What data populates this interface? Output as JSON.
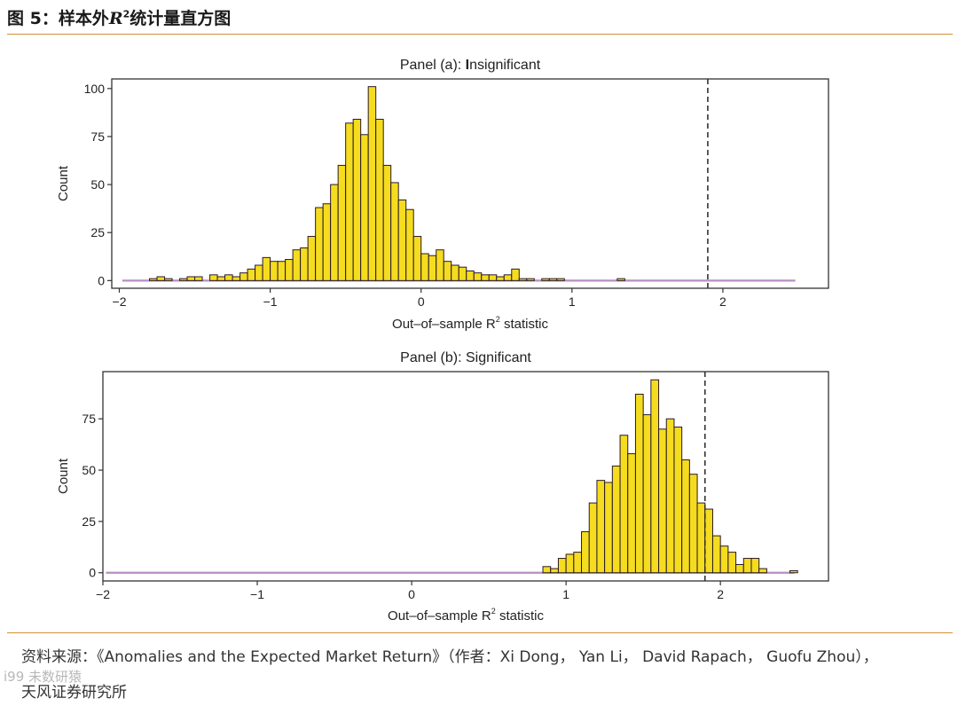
{
  "figure": {
    "title_prefix": "图 5：样本外",
    "title_var": "R",
    "title_sup": "2",
    "title_suffix": "统计量直方图",
    "source_text": "资料来源：《Anomalies and the Expected Market Return》（作者：Xi Dong，  Yan Li，  David Rapach，  Guofu Zhou），",
    "org_text": "天风证券研究所",
    "watermark_text": "i99 未数研猿"
  },
  "colors": {
    "bar_fill": "#f5dc1e",
    "bar_stroke": "#2a1a2a",
    "baseline": "#b58fc0",
    "rule": "#d4903a",
    "threshold_line": "#333333"
  },
  "chart_data": [
    {
      "type": "bar",
      "title_text": "Panel (a): ",
      "title_bold": "I",
      "title_rest": "nsignificant",
      "xlabel": "Out–of–sample R",
      "xlabel_sup": "2",
      "xlabel_suffix": " statistic",
      "ylabel": "Count",
      "xlim": [
        -2.05,
        2.7
      ],
      "ylim": [
        -4,
        105
      ],
      "xticks": [
        -2,
        -1,
        0,
        1,
        2
      ],
      "xtick_labels": [
        "−2",
        "−1",
        "0",
        "1",
        "2"
      ],
      "yticks": [
        0,
        25,
        50,
        75,
        100
      ],
      "ytick_labels": [
        "0",
        "25",
        "50",
        "75",
        "100"
      ],
      "bin_width": 0.05,
      "baseline_range": [
        -1.98,
        2.48
      ],
      "threshold_x": 1.9,
      "bins": [
        [
          -1.8,
          1
        ],
        [
          -1.75,
          2
        ],
        [
          -1.7,
          1
        ],
        [
          -1.6,
          1
        ],
        [
          -1.55,
          2
        ],
        [
          -1.5,
          2
        ],
        [
          -1.4,
          3
        ],
        [
          -1.35,
          2
        ],
        [
          -1.3,
          3
        ],
        [
          -1.25,
          2
        ],
        [
          -1.2,
          4
        ],
        [
          -1.15,
          6
        ],
        [
          -1.1,
          8
        ],
        [
          -1.05,
          12
        ],
        [
          -1.0,
          10
        ],
        [
          -0.95,
          10
        ],
        [
          -0.9,
          11
        ],
        [
          -0.85,
          16
        ],
        [
          -0.8,
          17
        ],
        [
          -0.75,
          23
        ],
        [
          -0.7,
          38
        ],
        [
          -0.65,
          40
        ],
        [
          -0.6,
          50
        ],
        [
          -0.55,
          60
        ],
        [
          -0.5,
          82
        ],
        [
          -0.45,
          84
        ],
        [
          -0.4,
          76
        ],
        [
          -0.35,
          101
        ],
        [
          -0.3,
          84
        ],
        [
          -0.25,
          60
        ],
        [
          -0.2,
          51
        ],
        [
          -0.15,
          42
        ],
        [
          -0.1,
          37
        ],
        [
          -0.05,
          23
        ],
        [
          0.0,
          14
        ],
        [
          0.05,
          13
        ],
        [
          0.1,
          16
        ],
        [
          0.15,
          10
        ],
        [
          0.2,
          8
        ],
        [
          0.25,
          7
        ],
        [
          0.3,
          5
        ],
        [
          0.35,
          4
        ],
        [
          0.4,
          3
        ],
        [
          0.45,
          3
        ],
        [
          0.5,
          2
        ],
        [
          0.55,
          3
        ],
        [
          0.6,
          6
        ],
        [
          0.65,
          1
        ],
        [
          0.7,
          1
        ],
        [
          0.8,
          1
        ],
        [
          0.85,
          1
        ],
        [
          0.9,
          1
        ],
        [
          1.3,
          1
        ]
      ]
    },
    {
      "type": "bar",
      "title_text": "Panel (b): Significant",
      "title_bold": "",
      "title_rest": "",
      "xlabel": "Out–of–sample R",
      "xlabel_sup": "2",
      "xlabel_suffix": " statistic",
      "ylabel": "Count",
      "xlim": [
        -2.0,
        2.7
      ],
      "ylim": [
        -4,
        98
      ],
      "xticks": [
        -2,
        -1,
        0,
        1,
        2
      ],
      "xtick_labels": [
        "−2",
        "−1",
        "0",
        "1",
        "2"
      ],
      "yticks": [
        0,
        25,
        50,
        75
      ],
      "ytick_labels": [
        "0",
        "25",
        "50",
        "75"
      ],
      "bin_width": 0.05,
      "baseline_range": [
        -1.98,
        2.48
      ],
      "threshold_x": 1.9,
      "bins": [
        [
          0.85,
          3
        ],
        [
          0.9,
          2
        ],
        [
          0.95,
          7
        ],
        [
          1.0,
          9
        ],
        [
          1.05,
          10
        ],
        [
          1.1,
          20
        ],
        [
          1.15,
          34
        ],
        [
          1.2,
          45
        ],
        [
          1.25,
          44
        ],
        [
          1.3,
          52
        ],
        [
          1.35,
          67
        ],
        [
          1.4,
          58
        ],
        [
          1.45,
          87
        ],
        [
          1.5,
          77
        ],
        [
          1.55,
          94
        ],
        [
          1.6,
          70
        ],
        [
          1.65,
          75
        ],
        [
          1.7,
          71
        ],
        [
          1.75,
          55
        ],
        [
          1.8,
          48
        ],
        [
          1.85,
          34
        ],
        [
          1.9,
          31
        ],
        [
          1.95,
          18
        ],
        [
          2.0,
          13
        ],
        [
          2.05,
          10
        ],
        [
          2.1,
          4
        ],
        [
          2.15,
          7
        ],
        [
          2.2,
          7
        ],
        [
          2.25,
          2
        ],
        [
          2.45,
          1
        ]
      ]
    }
  ]
}
